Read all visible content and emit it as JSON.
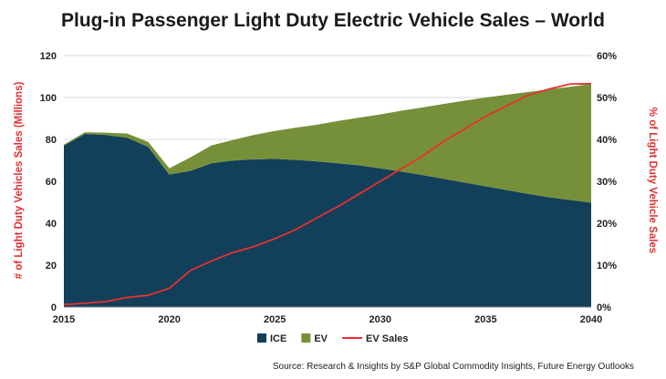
{
  "chart_data": {
    "type": "area",
    "title": "Plug-in Passenger Light Duty Electric Vehicle Sales – World",
    "ylabel": "# of Light Duty Vehicles Sales (Millions)",
    "y2label": "% of Light Duty Vehicle Sales",
    "ylim": [
      0,
      120
    ],
    "y2lim": [
      0,
      60
    ],
    "xlim": [
      2015,
      2040
    ],
    "yticks": [
      "0",
      "20",
      "40",
      "60",
      "80",
      "100",
      "120"
    ],
    "y2ticks": [
      "0%",
      "10%",
      "20%",
      "30%",
      "40%",
      "50%",
      "60%"
    ],
    "xticks": [
      "2015",
      "2020",
      "2025",
      "2030",
      "2035",
      "2040"
    ],
    "stacked": true,
    "grid": "horizontal",
    "legend_position": "bottom",
    "x": [
      2015,
      2016,
      2017,
      2018,
      2019,
      2020,
      2021,
      2022,
      2023,
      2024,
      2025,
      2026,
      2027,
      2028,
      2029,
      2030,
      2031,
      2032,
      2033,
      2034,
      2035,
      2036,
      2037,
      2038,
      2039,
      2040
    ],
    "series": [
      {
        "name": "ICE",
        "kind": "area",
        "color": "#123f5a",
        "values": [
          77,
          82.6,
          82.1,
          80.8,
          76.4,
          63.2,
          65,
          68.6,
          69.9,
          70.5,
          70.7,
          70.2,
          69.5,
          68.6,
          67.6,
          66.2,
          64.6,
          63,
          61.2,
          59.4,
          57.6,
          55.8,
          54,
          52.4,
          51.1,
          49.8
        ]
      },
      {
        "name": "EV",
        "kind": "area",
        "color": "#76903a",
        "values": [
          0.5,
          0.8,
          1.1,
          2,
          2.4,
          3,
          6.4,
          8.5,
          9.8,
          11.6,
          13.3,
          15.4,
          17.5,
          20.2,
          22.8,
          25.7,
          29.1,
          32.2,
          35.7,
          39.1,
          42.4,
          45.5,
          48.6,
          51.5,
          54,
          56.7
        ]
      },
      {
        "name": "EV Sales",
        "kind": "line",
        "axis": "right",
        "unit": "%",
        "color": "#e8312f",
        "values": [
          0.6,
          0.9,
          1.3,
          2.3,
          2.8,
          4.5,
          8.7,
          11,
          13,
          14.4,
          16.3,
          18.5,
          21.3,
          24,
          27,
          30,
          33,
          36,
          39.5,
          42.5,
          45.5,
          48,
          50.5,
          52,
          53.2,
          53.3
        ]
      }
    ],
    "source": "Source: Research & Insights by S&P Global Commodity Insights, Future Energy Outlooks"
  }
}
